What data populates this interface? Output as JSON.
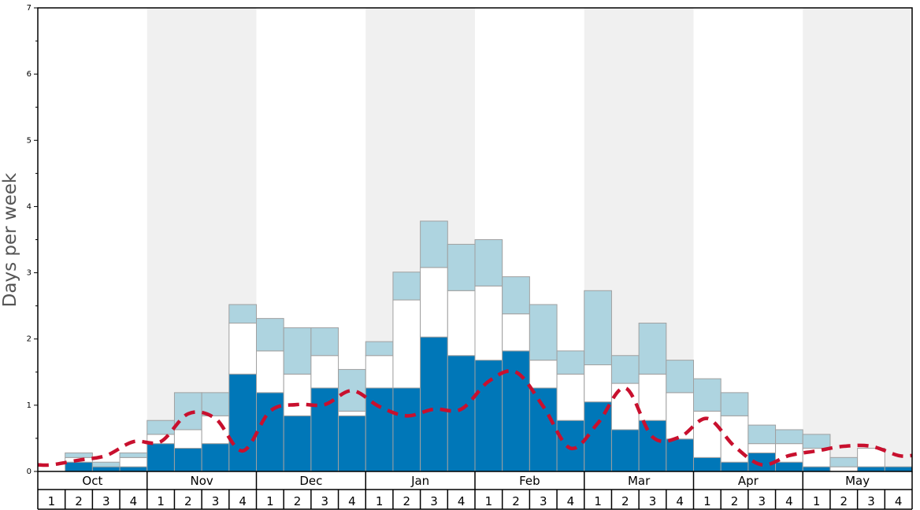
{
  "chart_data": {
    "type": "bar",
    "ylabel": "Days per week",
    "ylim": [
      0,
      7
    ],
    "y_ticks": [
      "0",
      "1",
      "2",
      "3",
      "4",
      "5",
      "6",
      "7"
    ],
    "months": [
      "Oct",
      "Nov",
      "Dec",
      "Jan",
      "Feb",
      "Mar",
      "Apr",
      "May"
    ],
    "weeks": [
      "1",
      "2",
      "3",
      "4"
    ],
    "colors": {
      "bottom": "#0077b8",
      "middle": "#ffffff",
      "top": "#aed4e0",
      "line": "#c8102e",
      "band": "#f0f0f0"
    },
    "series": [
      {
        "stack_level": "bottom",
        "values": [
          0,
          0.14,
          0.07,
          0.07,
          0.42,
          0.35,
          0.42,
          1.47,
          1.19,
          0.84,
          1.26,
          0.84,
          1.26,
          1.26,
          2.03,
          1.75,
          1.68,
          1.82,
          1.26,
          0.77,
          1.05,
          0.63,
          0.77,
          0.49,
          0.21,
          0.14,
          0.28,
          0.14,
          0.07,
          0.0,
          0.07,
          0.07
        ]
      },
      {
        "stack_level": "middle",
        "values": [
          0,
          0.07,
          0.0,
          0.14,
          0.14,
          0.28,
          0.42,
          0.77,
          0.63,
          0.63,
          0.49,
          0.07,
          0.49,
          1.33,
          1.05,
          0.98,
          1.12,
          0.56,
          0.42,
          0.7,
          0.56,
          0.7,
          0.7,
          0.7,
          0.7,
          0.7,
          0.14,
          0.28,
          0.28,
          0.07,
          0.28,
          0.0
        ]
      },
      {
        "stack_level": "top",
        "values": [
          0,
          0.07,
          0.07,
          0.07,
          0.21,
          0.56,
          0.35,
          0.28,
          0.49,
          0.7,
          0.42,
          0.63,
          0.21,
          0.42,
          0.7,
          0.7,
          0.7,
          0.56,
          0.84,
          0.35,
          1.12,
          0.42,
          0.77,
          0.49,
          0.49,
          0.35,
          0.28,
          0.21,
          0.21,
          0.14,
          0.0,
          0.0
        ]
      },
      {
        "type": "line",
        "style": "dashed",
        "values": [
          0.1,
          0.17,
          0.24,
          0.45,
          0.45,
          0.87,
          0.8,
          0.31,
          0.91,
          1.01,
          1.01,
          1.22,
          0.98,
          0.84,
          0.94,
          0.94,
          1.36,
          1.5,
          0.98,
          0.35,
          0.73,
          1.26,
          0.52,
          0.52,
          0.8,
          0.38,
          0.1,
          0.24,
          0.31,
          0.38,
          0.38,
          0.24
        ]
      }
    ],
    "grid": false,
    "legend": "none"
  }
}
